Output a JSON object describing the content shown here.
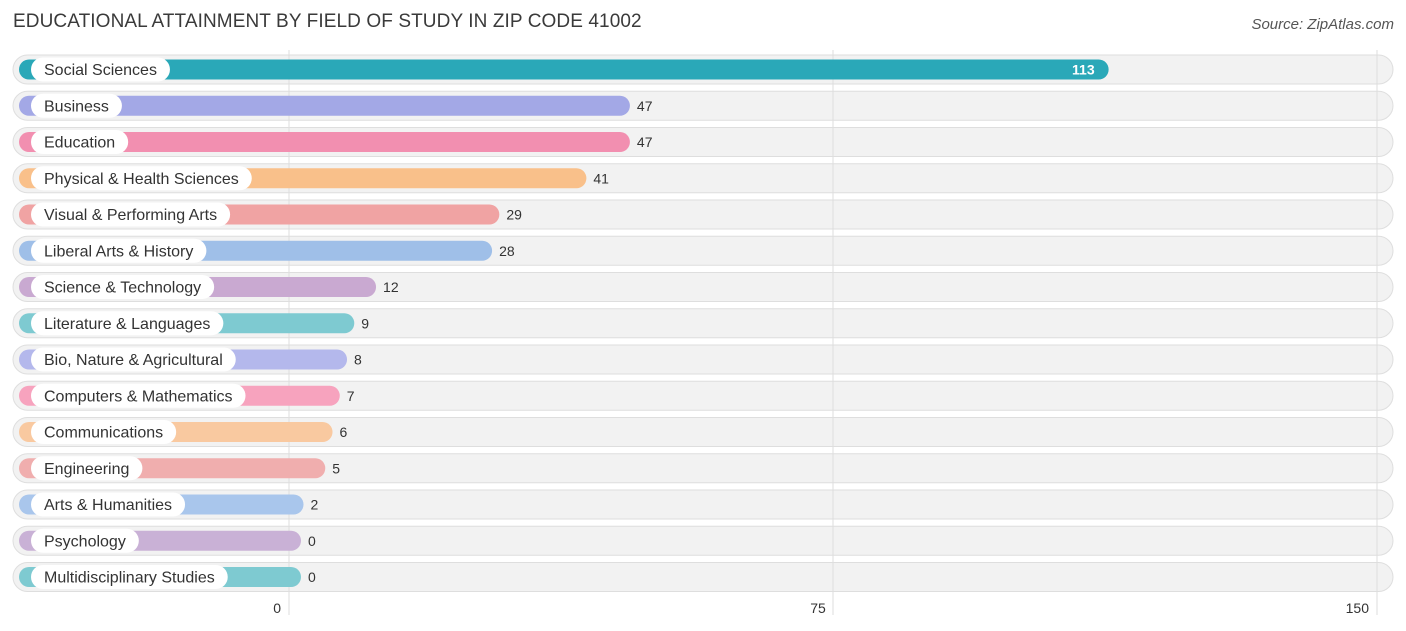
{
  "header": {
    "title": "EDUCATIONAL ATTAINMENT BY FIELD OF STUDY IN ZIP CODE 41002",
    "source": "Source: ZipAtlas.com"
  },
  "chart_data": {
    "type": "bar",
    "orientation": "horizontal",
    "title": "EDUCATIONAL ATTAINMENT BY FIELD OF STUDY IN ZIP CODE 41002",
    "xlabel": "",
    "ylabel": "",
    "xlim": [
      0,
      150
    ],
    "ticks": [
      0,
      75,
      150
    ],
    "grid": true,
    "categories": [
      "Social Sciences",
      "Business",
      "Education",
      "Physical & Health Sciences",
      "Visual & Performing Arts",
      "Liberal Arts & History",
      "Science & Technology",
      "Literature & Languages",
      "Bio, Nature & Agricultural",
      "Computers & Mathematics",
      "Communications",
      "Engineering",
      "Arts & Humanities",
      "Psychology",
      "Multidisciplinary Studies"
    ],
    "values": [
      113,
      47,
      47,
      41,
      29,
      28,
      12,
      9,
      8,
      7,
      6,
      5,
      2,
      0,
      0
    ],
    "colors": [
      "#2aa8b8",
      "#a3a8e6",
      "#f28fb0",
      "#f9c08a",
      "#f0a3a3",
      "#9fbfe8",
      "#c9a9d1",
      "#7ecad1",
      "#b4b8ec",
      "#f7a3be",
      "#f9c9a0",
      "#f0aeae",
      "#a9c6ec",
      "#c9b1d6",
      "#7ecad1"
    ]
  }
}
